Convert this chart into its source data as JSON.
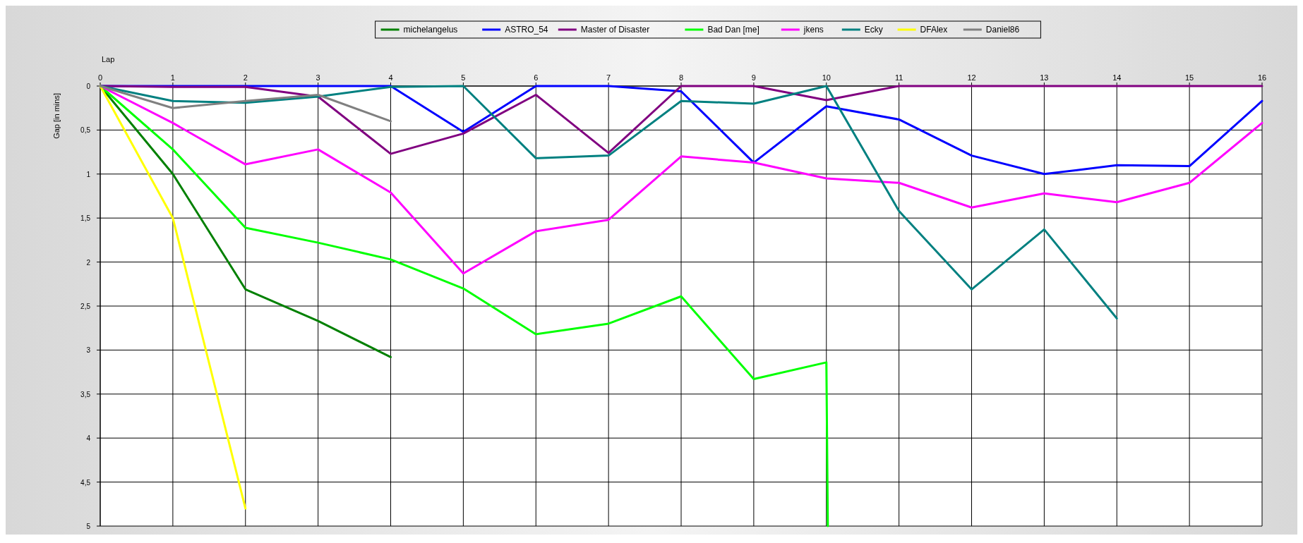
{
  "chart_data": {
    "type": "line",
    "xlabel": "Lap",
    "ylabel": "Gap [in mins]",
    "xlim": [
      0,
      16
    ],
    "xticks": [
      0,
      1,
      2,
      3,
      4,
      5,
      6,
      7,
      8,
      9,
      10,
      11,
      12,
      13,
      14,
      15,
      16
    ],
    "ylim": [
      5,
      0
    ],
    "yticks": [
      0,
      {
        "value": 0.5,
        "label": "0,5"
      },
      1,
      {
        "value": 1.5,
        "label": "1,5"
      },
      2,
      {
        "value": 2.5,
        "label": "2,5"
      },
      3,
      {
        "value": 3.5,
        "label": "3,5"
      },
      4,
      {
        "value": 4.5,
        "label": "4,5"
      },
      5
    ],
    "grid": true,
    "legend": "top",
    "line_style": "solid",
    "marker": "none",
    "series": [
      {
        "name": "michelangelus",
        "color": "#008000",
        "x": [
          0,
          1,
          2,
          3,
          4
        ],
        "values": [
          0,
          1,
          2.31,
          2.67,
          3.08
        ]
      },
      {
        "name": "ASTRO_54",
        "color": "#0000ff",
        "x": [
          0,
          1,
          2,
          3,
          4,
          5,
          6,
          7,
          8,
          9,
          10,
          11,
          12,
          13,
          14,
          15,
          16
        ],
        "values": [
          0,
          0,
          0,
          0,
          0,
          0.52,
          0,
          0,
          0.06,
          0.87,
          0.23,
          0.38,
          0.79,
          1.0,
          0.9,
          0.91,
          0.17
        ]
      },
      {
        "name": "Master of Disaster",
        "color": "#800080",
        "x": [
          0,
          1,
          2,
          3,
          4,
          5,
          6,
          7,
          8,
          9,
          10,
          11,
          12,
          13,
          14,
          15,
          16
        ],
        "values": [
          0,
          0.01,
          0.01,
          0.12,
          0.77,
          0.54,
          0.1,
          0.76,
          0,
          0,
          0.16,
          0,
          0,
          0,
          0,
          0,
          0
        ]
      },
      {
        "name": "Bad Dan [me]",
        "color": "#00ff00",
        "x": [
          0,
          1,
          2,
          3,
          4,
          5,
          6,
          7,
          8,
          9,
          10,
          10.02
        ],
        "values": [
          0,
          0.72,
          1.61,
          1.78,
          1.97,
          2.3,
          2.82,
          2.7,
          2.39,
          3.33,
          3.14,
          5
        ]
      },
      {
        "name": "jkens",
        "color": "#ff00ff",
        "x": [
          0,
          1,
          2,
          3,
          4,
          5,
          6,
          7,
          8,
          9,
          10,
          11,
          12,
          13,
          14,
          15,
          16
        ],
        "values": [
          0,
          0.42,
          0.89,
          0.72,
          1.21,
          2.13,
          1.65,
          1.52,
          0.8,
          0.87,
          1.05,
          1.1,
          1.38,
          1.22,
          1.32,
          1.1,
          0.42
        ]
      },
      {
        "name": "Ecky",
        "color": "#008080",
        "x": [
          0,
          1,
          2,
          3,
          4,
          5,
          6,
          7,
          8,
          9,
          10,
          11,
          12,
          13,
          14
        ],
        "values": [
          0,
          0.17,
          0.19,
          0.12,
          0.01,
          0,
          0.82,
          0.79,
          0.17,
          0.2,
          0,
          1.42,
          2.31,
          1.63,
          2.64
        ]
      },
      {
        "name": "DFAlex",
        "color": "#ffff00",
        "x": [
          0,
          1,
          2
        ],
        "values": [
          0,
          1.5,
          4.8
        ]
      },
      {
        "name": "Daniel86",
        "color": "#808080",
        "x": [
          0,
          1,
          2,
          3,
          4
        ],
        "values": [
          0,
          0.25,
          0.17,
          0.1,
          0.4
        ]
      }
    ]
  }
}
